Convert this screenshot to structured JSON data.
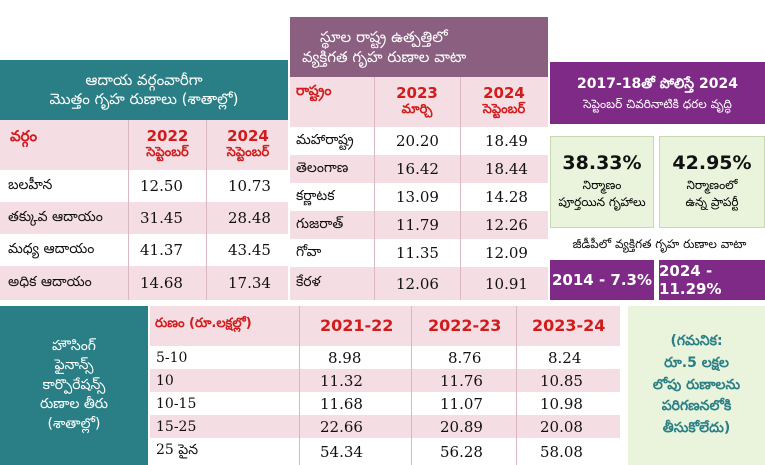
{
  "income_table": {
    "title_line1": "ఆదాయ వర్గంవారీగా",
    "title_line2": "మొత్తం గృహ రుణాలు (శాతాల్లో)",
    "col_category": "వర్గం",
    "col_2022_year": "2022",
    "col_2022_month": "సెప్టెంబర్",
    "col_2024_year": "2024",
    "col_2024_month": "సెప్టెంబర్",
    "rows": [
      {
        "label": "బలహీన",
        "v2022": "12.50",
        "v2024": "10.73"
      },
      {
        "label": "తక్కువ ఆదాయం",
        "v2022": "31.45",
        "v2024": "28.48"
      },
      {
        "label": "మధ్య ఆదాయం",
        "v2022": "41.37",
        "v2024": "43.45"
      },
      {
        "label": "అధిక ఆదాయం",
        "v2022": "14.68",
        "v2024": "17.34"
      }
    ]
  },
  "state_table": {
    "title_line1": "స్థూల రాష్ట్ర ఉత్పత్తిలో",
    "title_line2": "వ్యక్తిగత గృహ రుణాల వాటా",
    "col_state": "రాష్ట్రం",
    "col_2023_year": "2023",
    "col_2023_month": "మార్చి",
    "col_2024_year": "2024",
    "col_2024_month": "సెప్టెంబర్",
    "rows": [
      {
        "label": "మహారాష్ట్ర",
        "v2023": "20.20",
        "v2024": "18.49"
      },
      {
        "label": "తెలంగాణ",
        "v2023": "16.42",
        "v2024": "18.44"
      },
      {
        "label": "కర్ణాటక",
        "v2023": "13.09",
        "v2024": "14.28"
      },
      {
        "label": "గుజరాత్",
        "v2023": "11.79",
        "v2024": "12.26"
      },
      {
        "label": "గోవా",
        "v2023": "11.35",
        "v2024": "12.09"
      },
      {
        "label": "కేరళ",
        "v2023": "12.06",
        "v2024": "10.91"
      }
    ]
  },
  "price_box": {
    "title_line1": "2017-18తో పోలిస్తే 2024",
    "title_line2": "సెప్టెంబర్ చివరినాటికి ధరల వృద్ధి",
    "left_pct": "38.33%",
    "left_label1": "నిర్మాణం",
    "left_label2": "పూర్తయిన గృహాలు",
    "right_pct": "42.95%",
    "right_label1": "నిర్మాణంలో",
    "right_label2": "ఉన్న ప్రాపర్టీ",
    "gdp_heading": "జీడీపీలో వ్యక్తిగత గృహ రుణాల వాటా",
    "gdp_2014": "2014 - 7.3%",
    "gdp_2024": "2024 - 11.29%"
  },
  "hfc_table": {
    "side_title": [
      "హౌసింగ్",
      "ఫైనాన్స్",
      "కార్పొరేషన్స్",
      "రుణాల తీరు",
      "(శాతాల్లో)"
    ],
    "col_loan": "రుణం (రూ.లక్షల్లో)",
    "col_y1": "2021-22",
    "col_y2": "2022-23",
    "col_y3": "2023-24",
    "rows": [
      {
        "label": "5-10",
        "y1": "8.98",
        "y2": "8.76",
        "y3": "8.24"
      },
      {
        "label": "10",
        "y1": "11.32",
        "y2": "11.76",
        "y3": "10.85"
      },
      {
        "label": "10-15",
        "y1": "11.68",
        "y2": "11.07",
        "y3": "10.98"
      },
      {
        "label": "15-25",
        "y1": "22.66",
        "y2": "20.89",
        "y3": "20.08"
      },
      {
        "label": "25 పైన",
        "y1": "54.34",
        "y2": "56.28",
        "y3": "58.08"
      }
    ],
    "note": [
      "(గమనిక:",
      "రూ.5 లక్షల",
      "లోపు రుణాలను",
      "పరిగణనలోకి",
      "తీసుకోలేదు)"
    ]
  },
  "colors": {
    "teal": "#2a7f86",
    "mauve": "#8a5f80",
    "purple": "#7e2a86",
    "red": "#d01c1c",
    "pink": "#f4dde3",
    "green": "#eaf4dc"
  }
}
